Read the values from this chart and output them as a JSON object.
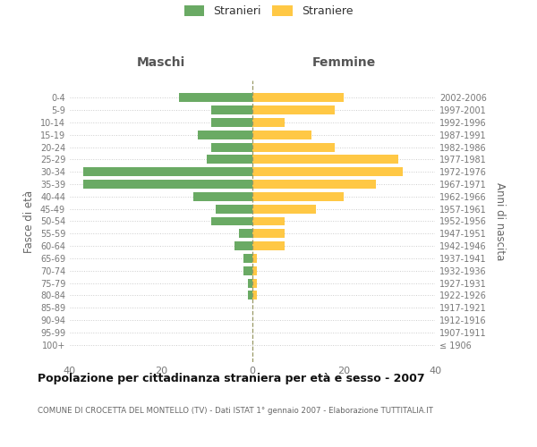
{
  "age_groups": [
    "100+",
    "95-99",
    "90-94",
    "85-89",
    "80-84",
    "75-79",
    "70-74",
    "65-69",
    "60-64",
    "55-59",
    "50-54",
    "45-49",
    "40-44",
    "35-39",
    "30-34",
    "25-29",
    "20-24",
    "15-19",
    "10-14",
    "5-9",
    "0-4"
  ],
  "birth_years": [
    "≤ 1906",
    "1907-1911",
    "1912-1916",
    "1917-1921",
    "1922-1926",
    "1927-1931",
    "1932-1936",
    "1937-1941",
    "1942-1946",
    "1947-1951",
    "1952-1956",
    "1957-1961",
    "1962-1966",
    "1967-1971",
    "1972-1976",
    "1977-1981",
    "1982-1986",
    "1987-1991",
    "1992-1996",
    "1997-2001",
    "2002-2006"
  ],
  "maschi": [
    0,
    0,
    0,
    0,
    1,
    1,
    2,
    2,
    4,
    3,
    9,
    8,
    13,
    37,
    37,
    10,
    9,
    12,
    9,
    9,
    16
  ],
  "femmine": [
    0,
    0,
    0,
    0,
    1,
    1,
    1,
    1,
    7,
    7,
    7,
    14,
    20,
    27,
    33,
    32,
    18,
    13,
    7,
    18,
    20
  ],
  "bar_color_maschi": "#6aaa64",
  "bar_color_femmine": "#ffc845",
  "title": "Popolazione per cittadinanza straniera per età e sesso - 2007",
  "subtitle": "COMUNE DI CROCETTA DEL MONTELLO (TV) - Dati ISTAT 1° gennaio 2007 - Elaborazione TUTTITALIA.IT",
  "ylabel_left": "Fasce di età",
  "ylabel_right": "Anni di nascita",
  "header_left": "Maschi",
  "header_right": "Femmine",
  "legend_stranieri": "Stranieri",
  "legend_straniere": "Straniere",
  "xlim": 40,
  "background_color": "#ffffff",
  "grid_color": "#cccccc"
}
